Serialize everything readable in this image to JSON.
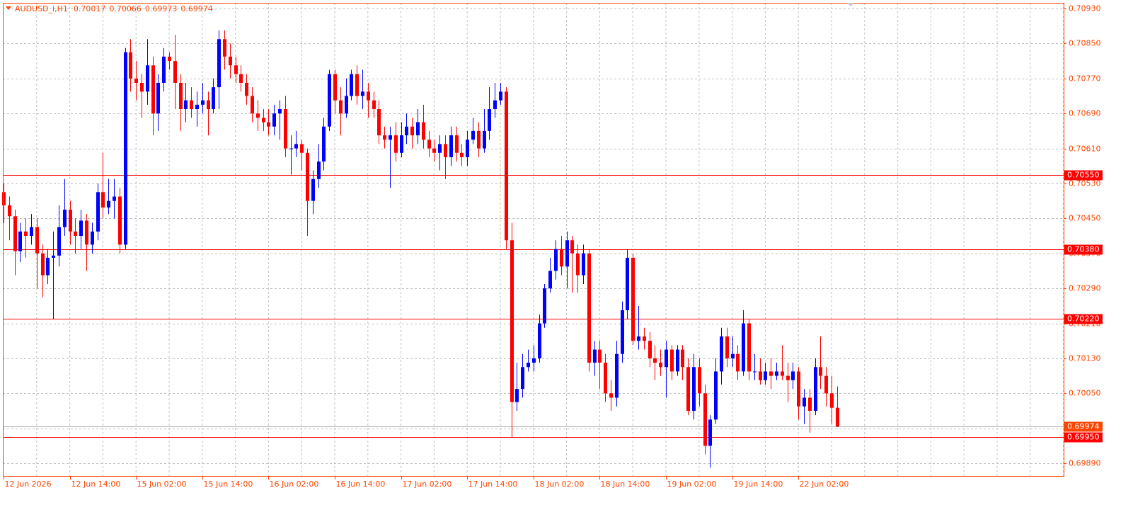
{
  "chart_data": {
    "type": "candlestick",
    "symbol": "AUDUSD_i,H1",
    "up_color": "#0000ff",
    "down_color": "#ff0000",
    "axis_color": "#ff4500",
    "level_color": "#ff0000",
    "current_color": "#ff4500",
    "grid": true,
    "categories": [
      "12 Jun 2026",
      null,
      null,
      null,
      null,
      null,
      null,
      null,
      null,
      null,
      null,
      null,
      "12 Jun 14:00",
      null,
      null,
      null,
      null,
      null,
      null,
      null,
      null,
      null,
      null,
      null,
      "15 Jun 02:00",
      null,
      null,
      null,
      null,
      null,
      null,
      null,
      null,
      null,
      null,
      null,
      "15 Jun 14:00",
      null,
      null,
      null,
      null,
      null,
      null,
      null,
      null,
      null,
      null,
      null,
      "16 Jun 02:00",
      null,
      null,
      null,
      null,
      null,
      null,
      null,
      null,
      null,
      null,
      null,
      "16 Jun 14:00",
      null,
      null,
      null,
      null,
      null,
      null,
      null,
      null,
      null,
      null,
      null,
      "17 Jun 02:00",
      null,
      null,
      null,
      null,
      null,
      null,
      null,
      null,
      null,
      null,
      null,
      "17 Jun 14:00",
      null,
      null,
      null,
      null,
      null,
      null,
      null,
      null,
      null,
      null,
      null,
      "18 Jun 02:00",
      null,
      null,
      null,
      null,
      null,
      null,
      null,
      null,
      null,
      null,
      null,
      "18 Jun 14:00",
      null,
      null,
      null,
      null,
      null,
      null,
      null,
      null,
      null,
      null,
      null,
      "19 Jun 02:00",
      null,
      null,
      null,
      null,
      null,
      null,
      null,
      null,
      null,
      null,
      null,
      "19 Jun 14:00",
      null,
      null,
      null,
      null,
      null,
      null,
      null,
      null,
      null,
      null,
      null,
      "22 Jun 02:00",
      null,
      null,
      null,
      null,
      null,
      null,
      null
    ],
    "open": [
      0.7051,
      0.7048,
      0.70455,
      0.70375,
      0.7042,
      0.7041,
      0.7043,
      0.7037,
      0.7032,
      0.7036,
      0.70365,
      0.7043,
      0.7047,
      0.7042,
      0.7041,
      0.70445,
      0.7039,
      0.7042,
      0.7051,
      0.70475,
      0.7049,
      0.705,
      0.7039,
      0.7083,
      0.7077,
      0.7076,
      0.7074,
      0.708,
      0.7069,
      0.7076,
      0.7082,
      0.7081,
      0.7076,
      0.707,
      0.7072,
      0.707,
      0.7071,
      0.7072,
      0.707,
      0.7075,
      0.7086,
      0.7082,
      0.708,
      0.7078,
      0.7076,
      0.7073,
      0.7069,
      0.7068,
      0.7067,
      0.7066,
      0.7069,
      0.707,
      0.7061,
      0.7061,
      0.7062,
      0.706,
      0.7049,
      0.7054,
      0.7058,
      0.7066,
      0.7078,
      0.7072,
      0.7069,
      0.7073,
      0.7078,
      0.7073,
      0.7074,
      0.7072,
      0.707,
      0.7064,
      0.7063,
      0.7064,
      0.706,
      0.7064,
      0.7066,
      0.7064,
      0.7067,
      0.7063,
      0.7061,
      0.706,
      0.7062,
      0.7059,
      0.7064,
      0.706,
      0.7059,
      0.7063,
      0.7065,
      0.7061,
      0.7065,
      0.707,
      0.7072,
      0.7074,
      0.704,
      0.7003,
      0.7006,
      0.7011,
      0.7012,
      0.7013,
      0.7021,
      0.7029,
      0.7033,
      0.7038,
      0.7034,
      0.704,
      0.7037,
      0.7032,
      0.7037,
      0.7012,
      0.7015,
      0.7012,
      0.7005,
      0.7004,
      0.7014,
      0.7024,
      0.7036,
      0.7017,
      0.7018,
      0.7017,
      0.7013,
      0.7012,
      0.7011,
      0.7015,
      0.701,
      0.7015,
      0.7011,
      0.7001,
      0.7011,
      0.7005,
      0.6993,
      0.6999,
      0.701,
      0.7018,
      0.7013,
      0.7014,
      0.701,
      0.7021,
      0.701,
      0.701,
      0.7008,
      0.701,
      0.7009,
      0.701,
      0.7009,
      0.7008,
      0.701,
      0.7002,
      0.7004,
      0.7001,
      0.7011,
      0.7009,
      0.7005,
      0.70017
    ],
    "high": [
      0.7053,
      0.705,
      0.7047,
      0.7044,
      0.7045,
      0.7046,
      0.7045,
      0.7039,
      0.7038,
      0.7042,
      0.7048,
      0.7054,
      0.7049,
      0.7045,
      0.7047,
      0.7046,
      0.7044,
      0.7053,
      0.706,
      0.7054,
      0.7054,
      0.7052,
      0.7084,
      0.7086,
      0.7081,
      0.7078,
      0.7086,
      0.7082,
      0.7078,
      0.7084,
      0.7083,
      0.7087,
      0.7078,
      0.7076,
      0.7075,
      0.7074,
      0.7076,
      0.7074,
      0.7077,
      0.7088,
      0.7088,
      0.7085,
      0.7082,
      0.708,
      0.7078,
      0.7075,
      0.7072,
      0.707,
      0.707,
      0.7071,
      0.7072,
      0.7073,
      0.7064,
      0.7065,
      0.7063,
      0.7061,
      0.7056,
      0.7062,
      0.7068,
      0.7079,
      0.7079,
      0.7075,
      0.7077,
      0.7079,
      0.708,
      0.7079,
      0.7076,
      0.7074,
      0.7072,
      0.7066,
      0.7066,
      0.7067,
      0.7067,
      0.7069,
      0.7068,
      0.707,
      0.7071,
      0.7065,
      0.7063,
      0.7064,
      0.7064,
      0.7066,
      0.7066,
      0.7062,
      0.7065,
      0.7068,
      0.7067,
      0.707,
      0.7075,
      0.7076,
      0.7076,
      0.7075,
      0.7044,
      0.7012,
      0.7014,
      0.7015,
      0.7016,
      0.7023,
      0.703,
      0.7036,
      0.704,
      0.7041,
      0.7042,
      0.7041,
      0.7039,
      0.7039,
      0.7038,
      0.7017,
      0.7017,
      0.7014,
      0.7008,
      0.7017,
      0.7026,
      0.7038,
      0.7037,
      0.7025,
      0.702,
      0.7019,
      0.7016,
      0.7015,
      0.7017,
      0.7016,
      0.7016,
      0.7016,
      0.7013,
      0.7014,
      0.7013,
      0.7007,
      0.7,
      0.7013,
      0.702,
      0.702,
      0.7018,
      0.7016,
      0.7024,
      0.7022,
      0.7014,
      0.7013,
      0.7012,
      0.7013,
      0.7012,
      0.7016,
      0.7012,
      0.7012,
      0.7011,
      0.7006,
      0.7006,
      0.7013,
      0.7018,
      0.7011,
      0.7009,
      0.70066
    ],
    "low": [
      0.7044,
      0.704,
      0.7032,
      0.7035,
      0.7036,
      0.7039,
      0.7029,
      0.7027,
      0.703,
      0.7022,
      0.7034,
      0.7041,
      0.7039,
      0.7037,
      0.7038,
      0.7033,
      0.7037,
      0.704,
      0.7045,
      0.7046,
      0.7045,
      0.7037,
      0.7038,
      0.7074,
      0.7072,
      0.7068,
      0.7071,
      0.7064,
      0.7065,
      0.7074,
      0.7079,
      0.707,
      0.7065,
      0.7067,
      0.7068,
      0.7066,
      0.7069,
      0.7064,
      0.7069,
      0.707,
      0.7079,
      0.7077,
      0.7076,
      0.7074,
      0.7071,
      0.7067,
      0.7065,
      0.7065,
      0.7064,
      0.7064,
      0.7063,
      0.7059,
      0.7055,
      0.7059,
      0.7056,
      0.7041,
      0.7046,
      0.7052,
      0.7056,
      0.7065,
      0.7069,
      0.7064,
      0.7068,
      0.7072,
      0.7071,
      0.707,
      0.7068,
      0.7068,
      0.7062,
      0.7061,
      0.7052,
      0.7058,
      0.7059,
      0.7062,
      0.7061,
      0.7062,
      0.7061,
      0.7059,
      0.7058,
      0.7056,
      0.7054,
      0.7057,
      0.7058,
      0.7057,
      0.7057,
      0.7062,
      0.7059,
      0.706,
      0.7063,
      0.7068,
      0.7071,
      0.7038,
      0.6995,
      0.7001,
      0.7004,
      0.701,
      0.701,
      0.7012,
      0.702,
      0.7028,
      0.7031,
      0.7032,
      0.7029,
      0.7028,
      0.7028,
      0.703,
      0.701,
      0.7009,
      0.7006,
      0.7003,
      0.7001,
      0.7002,
      0.7012,
      0.7022,
      0.7016,
      0.7015,
      0.7015,
      0.7011,
      0.7008,
      0.7009,
      0.7004,
      0.7008,
      0.7009,
      0.7008,
      0.7,
      0.6999,
      0.7002,
      0.6991,
      0.6988,
      0.6998,
      0.7007,
      0.7011,
      0.7011,
      0.7008,
      0.7009,
      0.7008,
      0.7008,
      0.7007,
      0.7007,
      0.7006,
      0.7008,
      0.7008,
      0.7003,
      0.7006,
      0.6999,
      0.6998,
      0.6996,
      0.7,
      0.7006,
      0.7002,
      0.6998,
      0.69973
    ],
    "close": [
      0.7048,
      0.70455,
      0.70375,
      0.7042,
      0.7041,
      0.7043,
      0.7037,
      0.7032,
      0.7036,
      0.70365,
      0.7043,
      0.7047,
      0.7042,
      0.7041,
      0.70445,
      0.7039,
      0.7042,
      0.7051,
      0.70475,
      0.7049,
      0.705,
      0.7039,
      0.7083,
      0.7077,
      0.7076,
      0.7074,
      0.708,
      0.7069,
      0.7076,
      0.7082,
      0.7081,
      0.7076,
      0.707,
      0.7072,
      0.707,
      0.7071,
      0.7072,
      0.707,
      0.7075,
      0.7086,
      0.7082,
      0.708,
      0.7078,
      0.7076,
      0.7073,
      0.7069,
      0.7068,
      0.7067,
      0.7066,
      0.7069,
      0.707,
      0.7061,
      0.7061,
      0.7062,
      0.706,
      0.7049,
      0.7054,
      0.7058,
      0.7066,
      0.7078,
      0.7072,
      0.7069,
      0.7073,
      0.7078,
      0.7073,
      0.7074,
      0.7072,
      0.707,
      0.7064,
      0.7063,
      0.7064,
      0.706,
      0.7064,
      0.7066,
      0.7064,
      0.7067,
      0.7063,
      0.7061,
      0.706,
      0.7062,
      0.7059,
      0.7064,
      0.706,
      0.7059,
      0.7063,
      0.7065,
      0.7061,
      0.7065,
      0.707,
      0.7072,
      0.7074,
      0.704,
      0.7003,
      0.7006,
      0.7011,
      0.7012,
      0.7013,
      0.7021,
      0.7029,
      0.7033,
      0.7038,
      0.7034,
      0.704,
      0.7037,
      0.7032,
      0.7037,
      0.7012,
      0.7015,
      0.7012,
      0.7005,
      0.7004,
      0.7014,
      0.7024,
      0.7036,
      0.7017,
      0.7018,
      0.7017,
      0.7013,
      0.7012,
      0.7011,
      0.7015,
      0.701,
      0.7015,
      0.7011,
      0.7001,
      0.7011,
      0.7005,
      0.6993,
      0.6999,
      0.701,
      0.7018,
      0.7013,
      0.7014,
      0.701,
      0.7021,
      0.701,
      0.701,
      0.7008,
      0.701,
      0.7009,
      0.701,
      0.7009,
      0.7008,
      0.701,
      0.7002,
      0.7004,
      0.7001,
      0.7011,
      0.7009,
      0.7005,
      0.70017,
      0.69974
    ],
    "ylim": [
      0.69861,
      0.70943
    ],
    "yticks": [
      {
        "value": 0.7093,
        "label": "0.70930"
      },
      {
        "value": 0.7085,
        "label": "0.70850"
      },
      {
        "value": 0.7077,
        "label": "0.70770"
      },
      {
        "value": 0.7069,
        "label": "0.70690"
      },
      {
        "value": 0.7061,
        "label": "0.70610"
      },
      {
        "value": 0.7053,
        "label": "0.70530"
      },
      {
        "value": 0.7045,
        "label": "0.70450"
      },
      {
        "value": 0.7037,
        "label": "0.70370"
      },
      {
        "value": 0.7029,
        "label": "0.70290"
      },
      {
        "value": 0.7021,
        "label": "0.70210"
      },
      {
        "value": 0.7013,
        "label": "0.70130"
      },
      {
        "value": 0.7005,
        "label": "0.70050"
      },
      {
        "value": 0.6997,
        "label": "0.69970"
      },
      {
        "value": 0.6989,
        "label": "0.69890"
      }
    ],
    "levels": [
      {
        "value": 0.7055,
        "label": "0.70550"
      },
      {
        "value": 0.7038,
        "label": "0.70380"
      },
      {
        "value": 0.7022,
        "label": "0.70220"
      },
      {
        "value": 0.6995,
        "label": "0.69950"
      }
    ]
  }
}
